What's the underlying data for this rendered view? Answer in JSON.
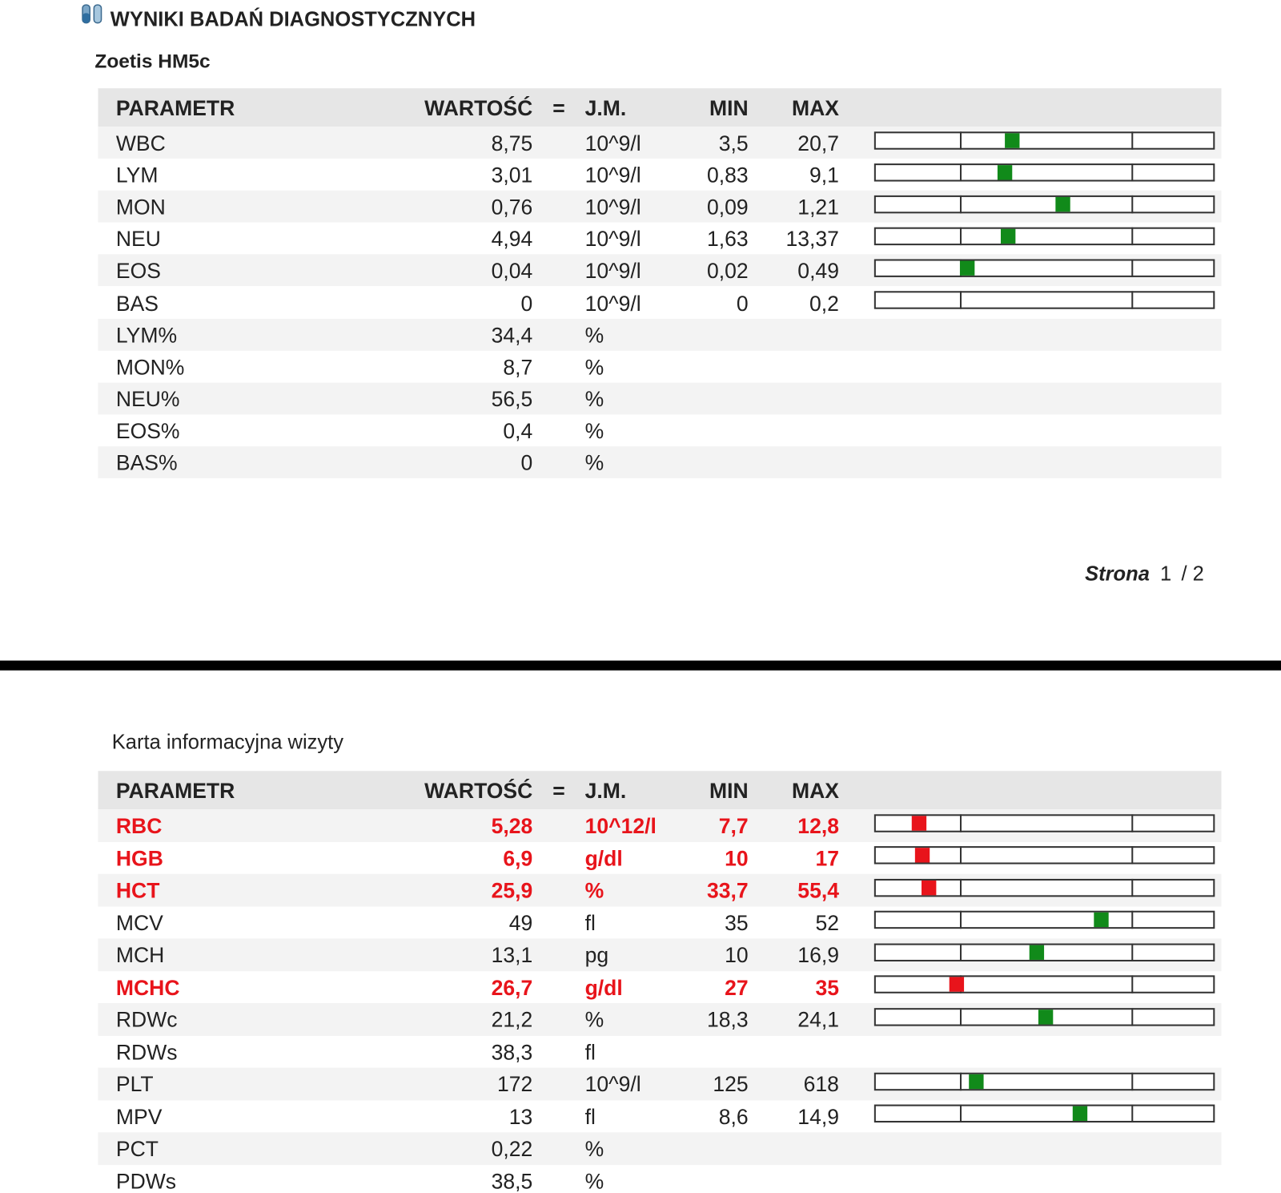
{
  "header": {
    "title": "WYNIKI BADAŃ DIAGNOSTYCZNYCH",
    "subtitle": "Zoetis HM5c"
  },
  "footer": {
    "label": "Strona",
    "page": "1",
    "total": "/ 2"
  },
  "tables": [
    {
      "columns": [
        "PARAMETR",
        "WARTOŚĆ",
        "=",
        "J.M.",
        "MIN",
        "MAX"
      ],
      "rows": [
        [
          "WBC",
          "8,75",
          "10^9/l",
          "3,5",
          "20,7"
        ],
        [
          "LYM",
          "3,01",
          "10^9/l",
          "0,83",
          "9,1"
        ],
        [
          "MON",
          "0,76",
          "10^9/l",
          "0,09",
          "1,21"
        ],
        [
          "NEU",
          "4,94",
          "10^9/l",
          "1,63",
          "13,37"
        ],
        [
          "EOS",
          "0,04",
          "10^9/l",
          "0,02",
          "0,49"
        ],
        [
          "BAS",
          "0",
          "10^9/l",
          "0",
          "0,2"
        ],
        [
          "LYM%",
          "34,4",
          "%"
        ],
        [
          "MON%",
          "8,7",
          "%"
        ],
        [
          "NEU%",
          "56,5",
          "%"
        ],
        [
          "EOS%",
          "0,4",
          "%"
        ],
        [
          "BAS%",
          "0",
          "%"
        ]
      ]
    },
    {
      "title": "Karta informacyjna wizyty",
      "columns": [
        "PARAMETR",
        "WARTOŚĆ",
        "=",
        "J.M.",
        "MIN",
        "MAX"
      ],
      "rows": [
        [
          "RBC",
          "5,28",
          "10^12/l",
          "7,7",
          "12,8"
        ],
        [
          "HGB",
          "6,9",
          "g/dl",
          "10",
          "17"
        ],
        [
          "HCT",
          "25,9",
          "%",
          "33,7",
          "55,4"
        ],
        [
          "MCV",
          "49",
          "fl",
          "35",
          "52"
        ],
        [
          "MCH",
          "13,1",
          "pg",
          "10",
          "16,9"
        ],
        [
          "MCHC",
          "26,7",
          "g/dl",
          "27",
          "35"
        ],
        [
          "RDWc",
          "21,2",
          "%",
          "18,3",
          "24,1"
        ],
        [
          "RDWs",
          "38,3",
          "fl"
        ],
        [
          "PLT",
          "172",
          "10^9/l",
          "125",
          "618"
        ],
        [
          "MPV",
          "13",
          "fl",
          "8,6",
          "14,9"
        ],
        [
          "PCT",
          "0,22",
          "%"
        ],
        [
          "PDWs",
          "38,5",
          "%"
        ]
      ]
    }
  ]
}
